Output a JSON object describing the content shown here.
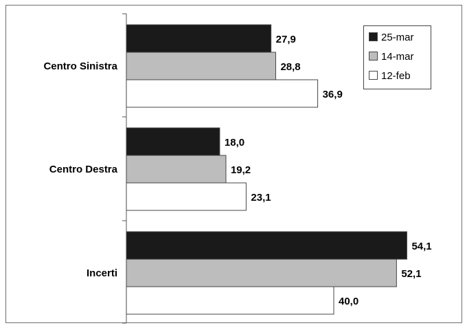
{
  "chart_data": {
    "type": "bar",
    "orientation": "horizontal",
    "title": "",
    "xlabel": "",
    "ylabel": "",
    "categories": [
      "Centro Sinistra",
      "Centro Destra",
      "Incerti"
    ],
    "value_labels": [
      [
        "27,9",
        "28,8",
        "36,9"
      ],
      [
        "18,0",
        "19,2",
        "23,1"
      ],
      [
        "54,1",
        "52,1",
        "40,0"
      ]
    ],
    "series": [
      {
        "name": "25-mar",
        "color": "#1a1a1a",
        "values": [
          27.9,
          18.0,
          54.1
        ]
      },
      {
        "name": "14-mar",
        "color": "#bdbdbd",
        "values": [
          28.8,
          19.2,
          52.1
        ]
      },
      {
        "name": "12-feb",
        "color": "#ffffff",
        "values": [
          36.9,
          23.1,
          40.0
        ]
      }
    ],
    "xlim": [
      0,
      60
    ],
    "grid": false,
    "legend_position": "top-right"
  }
}
